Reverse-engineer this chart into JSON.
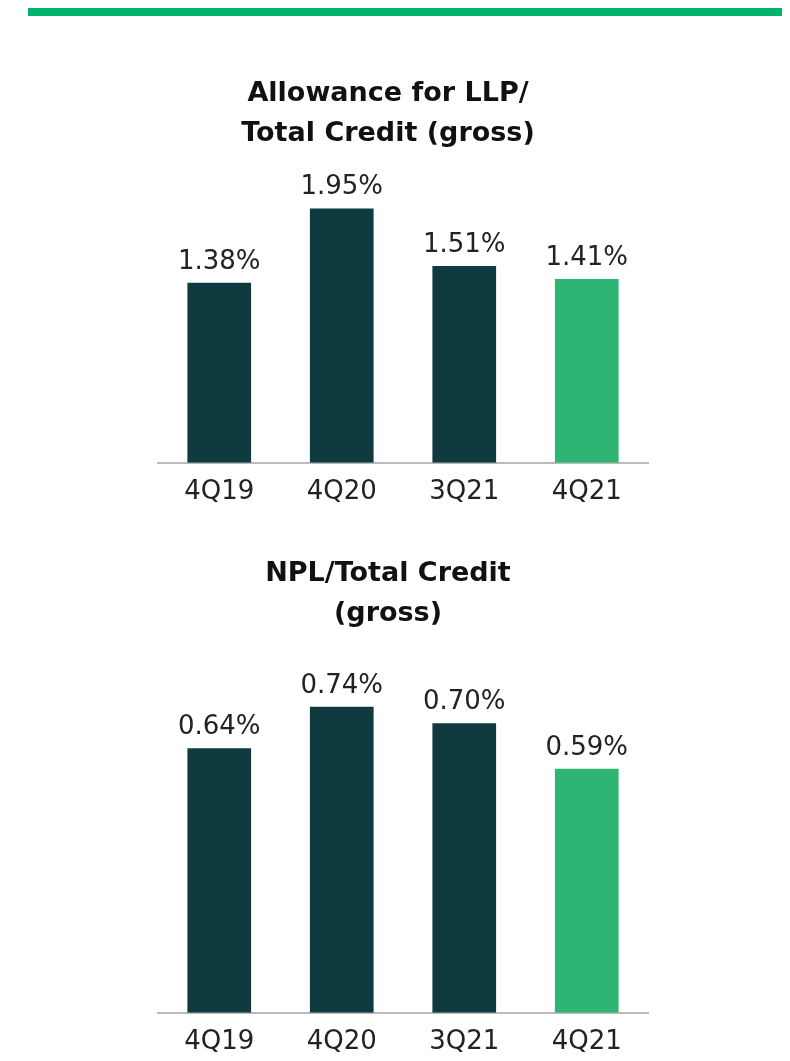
{
  "chart_data": [
    {
      "type": "bar",
      "title": "Allowance for LLP/ Total Credit (gross)",
      "categories": [
        "4Q19",
        "4Q20",
        "3Q21",
        "4Q21"
      ],
      "values": [
        1.38,
        1.95,
        1.51,
        1.41
      ],
      "colors": [
        "#0f3a40",
        "#0f3a40",
        "#0f3a40",
        "#2fb573"
      ],
      "value_labels": [
        "1.38%",
        "1.95%",
        "1.51%",
        "1.41%"
      ],
      "grid": false,
      "legend": false
    },
    {
      "type": "bar",
      "title": "NPL/Total Credit (gross)",
      "categories": [
        "4Q19",
        "4Q20",
        "3Q21",
        "4Q21"
      ],
      "values": [
        0.64,
        0.74,
        0.7,
        0.59
      ],
      "colors": [
        "#0f3a40",
        "#0f3a40",
        "#0f3a40",
        "#2fb573"
      ],
      "value_labels": [
        "0.64%",
        "0.74%",
        "0.70%",
        "0.59%"
      ],
      "grid": false,
      "legend": false
    }
  ]
}
